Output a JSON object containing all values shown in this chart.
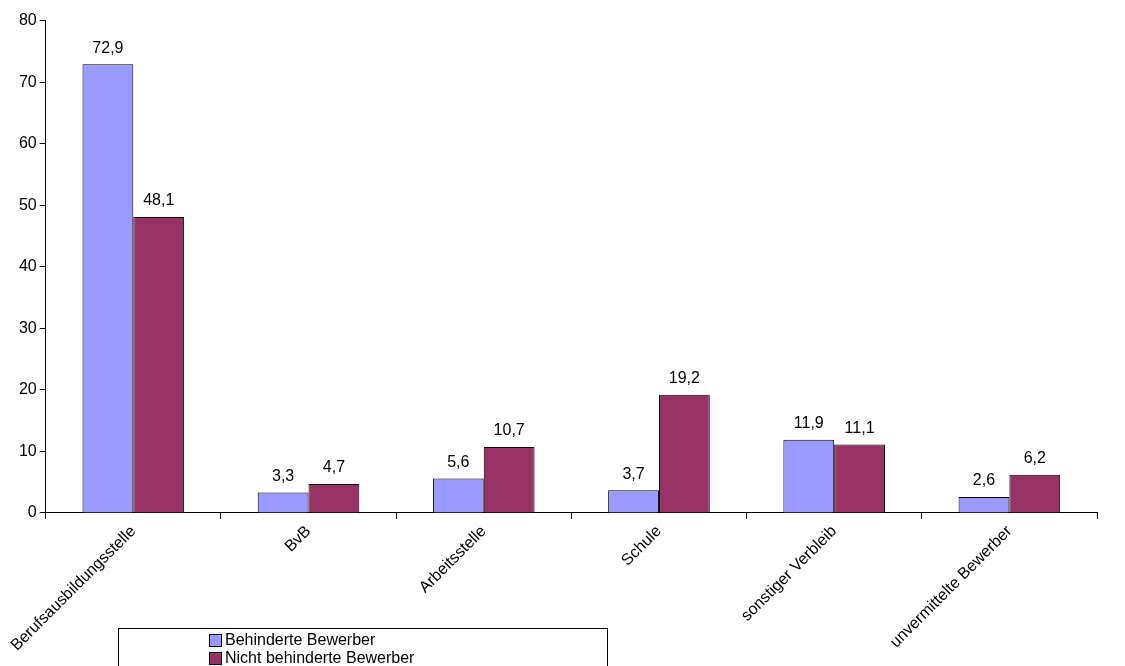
{
  "chart_data": {
    "type": "bar",
    "categories": [
      "Berufsausbildungsstelle",
      "BvB",
      "Arbeitsstelle",
      "Schule",
      "sonstiger Verbleib",
      "unvermittelte Bewerber"
    ],
    "series": [
      {
        "name": "Behinderte Bewerber",
        "color": "#9999ff",
        "values": [
          72.9,
          3.3,
          5.6,
          3.7,
          11.9,
          2.6
        ],
        "value_labels": [
          "72,9",
          "3,3",
          "5,6",
          "3,7",
          "11,9",
          "2,6"
        ]
      },
      {
        "name": "Nicht behinderte Bewerber",
        "color": "#993366",
        "values": [
          48.1,
          4.7,
          10.7,
          19.2,
          11.1,
          6.2
        ],
        "value_labels": [
          "48,1",
          "4,7",
          "10,7",
          "19,2",
          "11,1",
          "6,2"
        ]
      }
    ],
    "ylim": [
      0,
      80
    ],
    "yticks": [
      0,
      10,
      20,
      30,
      40,
      50,
      60,
      70,
      80
    ],
    "grid": false,
    "legend": "bottom left"
  }
}
